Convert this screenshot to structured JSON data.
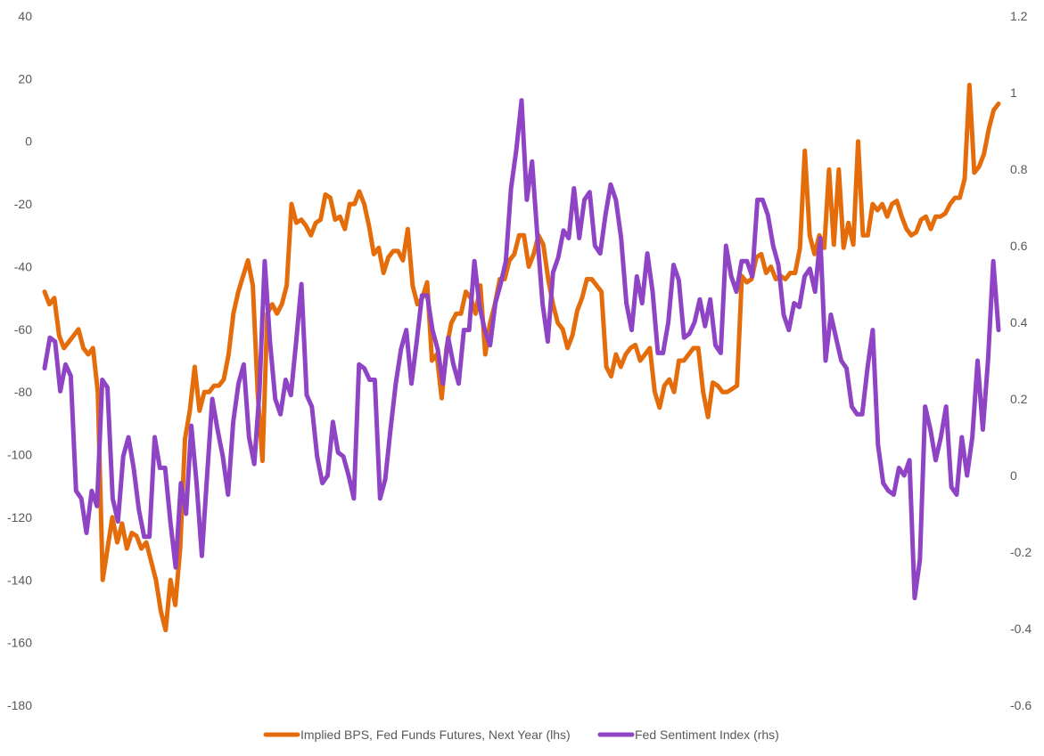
{
  "chart_data": {
    "type": "line",
    "title": "",
    "xlabel": "",
    "grid": false,
    "legend_position": "bottom",
    "y_left": {
      "min": -180,
      "max": 40,
      "ticks": [
        40,
        20,
        0,
        -20,
        -40,
        -60,
        -80,
        -100,
        -120,
        -140,
        -160,
        -180
      ],
      "tick_labels": [
        "40",
        "20",
        "0",
        "-20",
        "-40",
        "-60",
        "-80",
        "-100",
        "-120",
        "-140",
        "-160",
        "-180"
      ]
    },
    "y_right": {
      "min": -0.6,
      "max": 1.2,
      "ticks": [
        1.2,
        1,
        0.8,
        0.6,
        0.4,
        0.2,
        0,
        -0.2,
        -0.4,
        -0.6
      ],
      "tick_labels": [
        "1.2",
        "1",
        "0.8",
        "0.6",
        "0.4",
        "0.2",
        "0",
        "-0.2",
        "-0.4",
        "-0.6"
      ]
    },
    "series": [
      {
        "name": "Implied BPS, Fed Funds Futures, Next Year (lhs)",
        "axis": "left",
        "color": "#E46C0A",
        "values": [
          -48,
          -52,
          -50,
          -62,
          -66,
          -64,
          -62,
          -60,
          -66,
          -68,
          -66,
          -80,
          -140,
          -130,
          -120,
          -128,
          -122,
          -130,
          -125,
          -126,
          -130,
          -128,
          -134,
          -140,
          -150,
          -156,
          -140,
          -148,
          -130,
          -95,
          -86,
          -72,
          -86,
          -80,
          -80,
          -78,
          -78,
          -76,
          -68,
          -55,
          -48,
          -43,
          -38,
          -46,
          -80,
          -102,
          -55,
          -52,
          -55,
          -52,
          -46,
          -20,
          -26,
          -25,
          -27,
          -30,
          -26,
          -25,
          -17,
          -18,
          -25,
          -24,
          -28,
          -20,
          -20,
          -16,
          -20,
          -27,
          -36,
          -34,
          -42,
          -37,
          -35,
          -35,
          -38,
          -28,
          -46,
          -52,
          -50,
          -45,
          -70,
          -68,
          -82,
          -66,
          -58,
          -55,
          -55,
          -48,
          -50,
          -55,
          -46,
          -68,
          -58,
          -52,
          -44,
          -44,
          -38,
          -36,
          -30,
          -30,
          -40,
          -36,
          -30,
          -33,
          -44,
          -52,
          -58,
          -60,
          -66,
          -62,
          -54,
          -50,
          -44,
          -44,
          -46,
          -48,
          -72,
          -75,
          -68,
          -72,
          -68,
          -66,
          -65,
          -70,
          -68,
          -66,
          -80,
          -85,
          -78,
          -76,
          -80,
          -70,
          -70,
          -68,
          -66,
          -66,
          -80,
          -88,
          -77,
          -78,
          -80,
          -80,
          -79,
          -78,
          -43,
          -45,
          -44,
          -37,
          -36,
          -42,
          -40,
          -44,
          -43,
          -44,
          -42,
          -42,
          -34,
          -3,
          -30,
          -36,
          -30,
          -34,
          -9,
          -33,
          -9,
          -34,
          -26,
          -33,
          0,
          -30,
          -30,
          -20,
          -22,
          -20,
          -24,
          -20,
          -19,
          -24,
          -28,
          -30,
          -29,
          -25,
          -24,
          -28,
          -24,
          -24,
          -23,
          -20,
          -18,
          -18,
          -12,
          18,
          -10,
          -8,
          -4,
          4,
          10,
          12
        ]
      },
      {
        "name": "Fed Sentiment Index (rhs)",
        "axis": "right",
        "color": "#8E44C4",
        "values": [
          0.28,
          0.36,
          0.35,
          0.22,
          0.29,
          0.26,
          -0.04,
          -0.06,
          -0.15,
          -0.04,
          -0.08,
          0.25,
          0.23,
          -0.06,
          -0.12,
          0.05,
          0.1,
          0.02,
          -0.09,
          -0.16,
          -0.16,
          0.1,
          0.02,
          0.02,
          -0.12,
          -0.24,
          -0.02,
          -0.1,
          0.13,
          -0.02,
          -0.21,
          0.0,
          0.2,
          0.12,
          0.05,
          -0.05,
          0.14,
          0.24,
          0.29,
          0.1,
          0.03,
          0.22,
          0.56,
          0.35,
          0.2,
          0.16,
          0.25,
          0.21,
          0.35,
          0.5,
          0.21,
          0.18,
          0.05,
          -0.02,
          0.0,
          0.14,
          0.06,
          0.05,
          0.0,
          -0.06,
          0.29,
          0.28,
          0.25,
          0.25,
          -0.06,
          -0.01,
          0.12,
          0.24,
          0.33,
          0.38,
          0.24,
          0.35,
          0.47,
          0.47,
          0.38,
          0.33,
          0.24,
          0.36,
          0.29,
          0.24,
          0.38,
          0.38,
          0.56,
          0.44,
          0.38,
          0.34,
          0.45,
          0.5,
          0.56,
          0.75,
          0.85,
          0.98,
          0.72,
          0.82,
          0.63,
          0.45,
          0.35,
          0.53,
          0.57,
          0.64,
          0.62,
          0.75,
          0.62,
          0.72,
          0.74,
          0.6,
          0.58,
          0.68,
          0.76,
          0.72,
          0.62,
          0.45,
          0.38,
          0.52,
          0.45,
          0.58,
          0.48,
          0.32,
          0.32,
          0.4,
          0.55,
          0.51,
          0.36,
          0.37,
          0.4,
          0.46,
          0.39,
          0.46,
          0.34,
          0.32,
          0.6,
          0.52,
          0.48,
          0.56,
          0.56,
          0.52,
          0.72,
          0.72,
          0.68,
          0.6,
          0.55,
          0.42,
          0.38,
          0.45,
          0.44,
          0.52,
          0.54,
          0.48,
          0.62,
          0.3,
          0.42,
          0.36,
          0.3,
          0.28,
          0.18,
          0.16,
          0.16,
          0.28,
          0.38,
          0.08,
          -0.02,
          -0.04,
          -0.05,
          0.02,
          0.0,
          0.04,
          -0.32,
          -0.22,
          0.18,
          0.12,
          0.04,
          0.1,
          0.18,
          -0.03,
          -0.05,
          0.1,
          0.0,
          0.1,
          0.3,
          0.12,
          0.3,
          0.56,
          0.38
        ]
      }
    ]
  }
}
